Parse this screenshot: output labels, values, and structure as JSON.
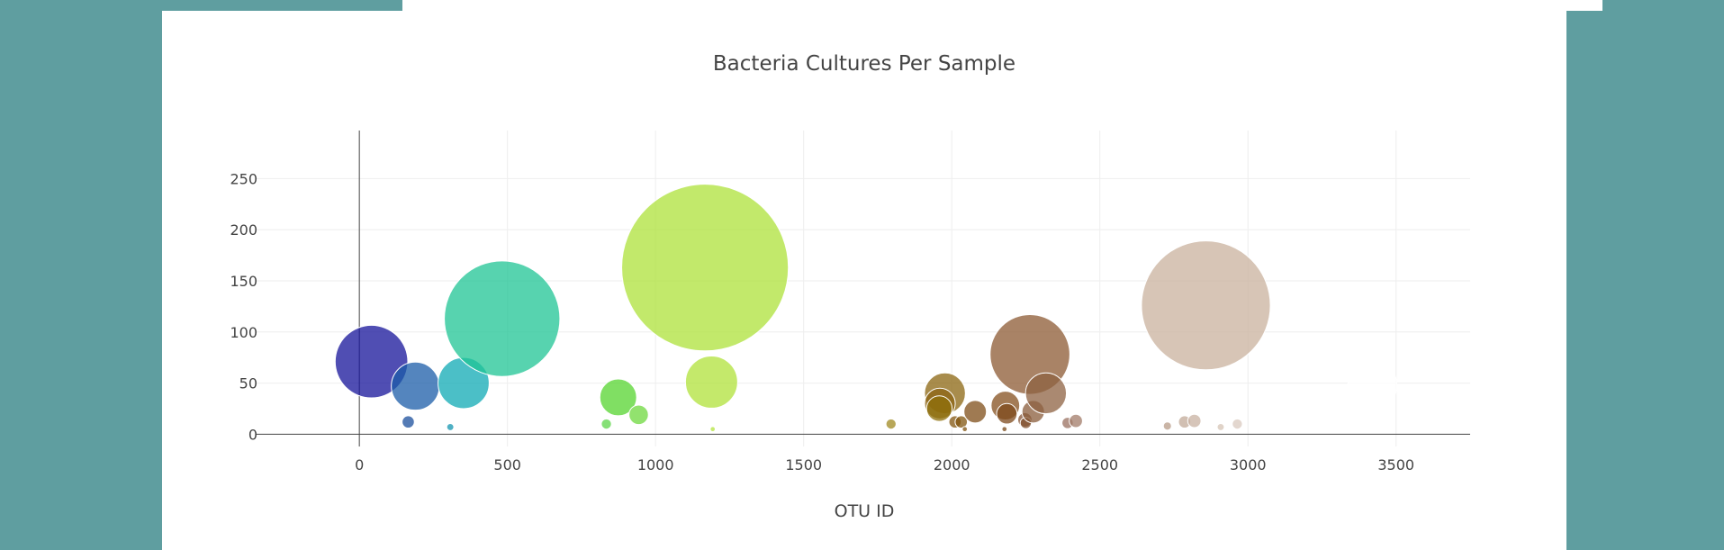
{
  "chart_data": {
    "type": "scatter",
    "title": "Bacteria Cultures Per Sample",
    "xlabel": "OTU ID",
    "ylabel": "",
    "xlim": [
      -350,
      3750
    ],
    "ylim": [
      -12,
      297
    ],
    "xticks": [
      0,
      500,
      1000,
      1500,
      2000,
      2500,
      3000,
      3500
    ],
    "yticks": [
      0,
      50,
      100,
      150,
      200,
      250
    ],
    "grid": true,
    "legend": "none",
    "marker_opacity": 0.75,
    "colorscale": "Earth",
    "points": [
      {
        "x": 41,
        "y": 71,
        "size": 71,
        "color": "#15139a"
      },
      {
        "x": 165,
        "y": 12,
        "size": 12,
        "color": "#1b4f9c"
      },
      {
        "x": 189,
        "y": 47,
        "size": 47,
        "color": "#1b5ca8"
      },
      {
        "x": 307,
        "y": 7,
        "size": 7,
        "color": "#1496b0"
      },
      {
        "x": 352,
        "y": 50,
        "size": 50,
        "color": "#0fa9b4"
      },
      {
        "x": 482,
        "y": 113,
        "size": 113,
        "color": "#1fc494"
      },
      {
        "x": 834,
        "y": 10,
        "size": 10,
        "color": "#5ed64a"
      },
      {
        "x": 874,
        "y": 36,
        "size": 36,
        "color": "#56d42f"
      },
      {
        "x": 943,
        "y": 19,
        "size": 19,
        "color": "#6ed83d"
      },
      {
        "x": 1167,
        "y": 163,
        "size": 163,
        "color": "#aee23a"
      },
      {
        "x": 1189,
        "y": 51,
        "size": 51,
        "color": "#b0e23a"
      },
      {
        "x": 1193,
        "y": 5,
        "size": 5,
        "color": "#b4e43f"
      },
      {
        "x": 1795,
        "y": 10,
        "size": 10,
        "color": "#a08a22"
      },
      {
        "x": 1977,
        "y": 40,
        "size": 40,
        "color": "#8b6510"
      },
      {
        "x": 1960,
        "y": 30,
        "size": 30,
        "color": "#8c6414"
      },
      {
        "x": 1958,
        "y": 25,
        "size": 25,
        "color": "#8e6f0a"
      },
      {
        "x": 2011,
        "y": 12,
        "size": 12,
        "color": "#83560f"
      },
      {
        "x": 2032,
        "y": 12,
        "size": 12,
        "color": "#82550f"
      },
      {
        "x": 2044,
        "y": 5,
        "size": 5,
        "color": "#80530f"
      },
      {
        "x": 2079,
        "y": 22,
        "size": 22,
        "color": "#7f4e18"
      },
      {
        "x": 2181,
        "y": 28,
        "size": 28,
        "color": "#844f1d"
      },
      {
        "x": 2186,
        "y": 20,
        "size": 20,
        "color": "#7d4a1c"
      },
      {
        "x": 2178,
        "y": 5,
        "size": 5,
        "color": "#7a4a1a"
      },
      {
        "x": 2264,
        "y": 78,
        "size": 78,
        "color": "#8c5a33"
      },
      {
        "x": 2247,
        "y": 14,
        "size": 14,
        "color": "#855435"
      },
      {
        "x": 2250,
        "y": 11,
        "size": 11,
        "color": "#815230"
      },
      {
        "x": 2275,
        "y": 22,
        "size": 22,
        "color": "#8a5c3b"
      },
      {
        "x": 2318,
        "y": 40,
        "size": 40,
        "color": "#8e6142"
      },
      {
        "x": 2391,
        "y": 11,
        "size": 11,
        "color": "#9a7060"
      },
      {
        "x": 2419,
        "y": 13,
        "size": 13,
        "color": "#a27b68"
      },
      {
        "x": 2728,
        "y": 8,
        "size": 8,
        "color": "#b89c88"
      },
      {
        "x": 2786,
        "y": 12,
        "size": 12,
        "color": "#c2aa98"
      },
      {
        "x": 2819,
        "y": 13,
        "size": 13,
        "color": "#c8b2a2"
      },
      {
        "x": 2858,
        "y": 126,
        "size": 126,
        "color": "#c9b29e"
      },
      {
        "x": 2908,
        "y": 7,
        "size": 7,
        "color": "#d6c4b6"
      },
      {
        "x": 2964,
        "y": 10,
        "size": 10,
        "color": "#dacabf"
      },
      {
        "x": 3420,
        "y": 48,
        "size": 48,
        "color": "#ffffff"
      },
      {
        "x": 3532,
        "y": 5,
        "size": 5,
        "color": "#ffffff"
      }
    ]
  }
}
